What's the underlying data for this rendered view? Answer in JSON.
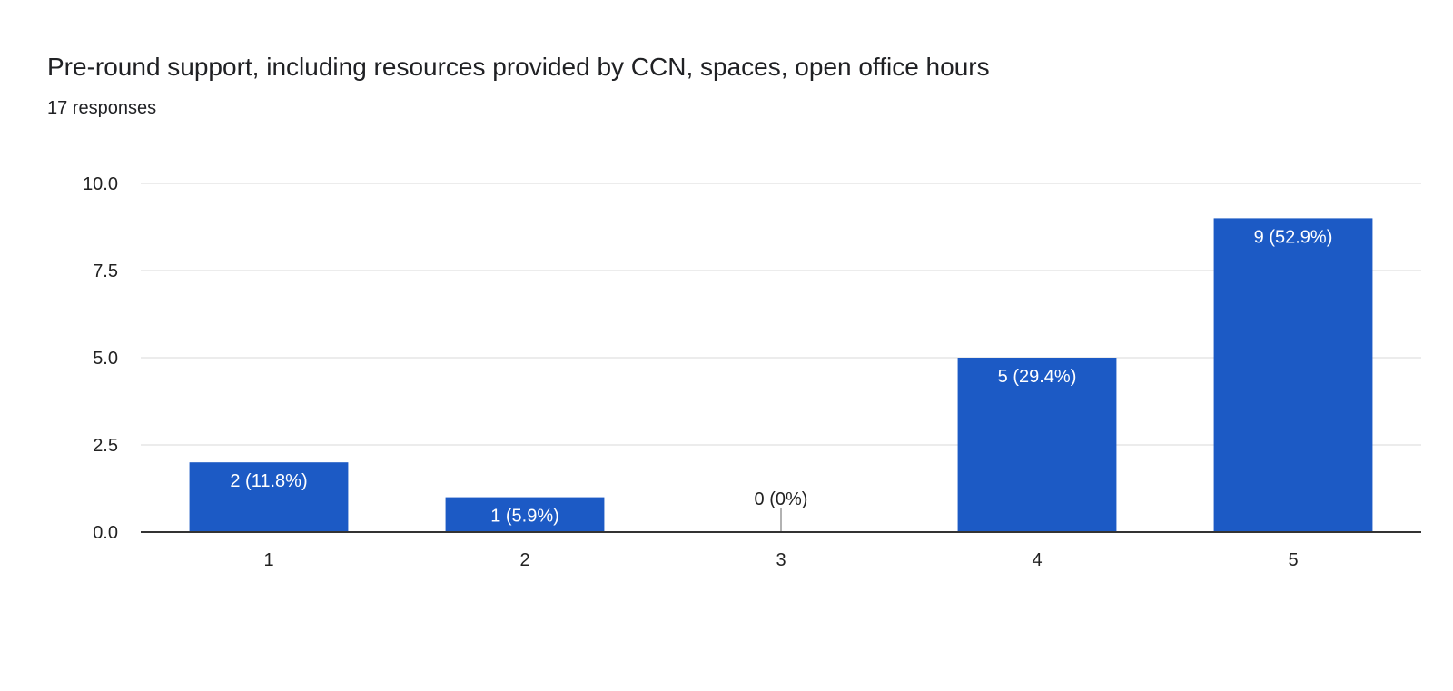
{
  "chart_data": {
    "type": "bar",
    "title": "Pre-round support, including resources provided by CCN, spaces, open office hours",
    "subtitle": "17 responses",
    "categories": [
      "1",
      "2",
      "3",
      "4",
      "5"
    ],
    "values": [
      2,
      1,
      0,
      5,
      9
    ],
    "data_labels": [
      "2 (11.8%)",
      "1 (5.9%)",
      "0 (0%)",
      "5 (29.4%)",
      "9 (52.9%)"
    ],
    "ylim": [
      0,
      10
    ],
    "yticks": [
      "0.0",
      "2.5",
      "5.0",
      "7.5",
      "10.0"
    ],
    "grid": true,
    "bar_color": "#1c5ac5"
  }
}
